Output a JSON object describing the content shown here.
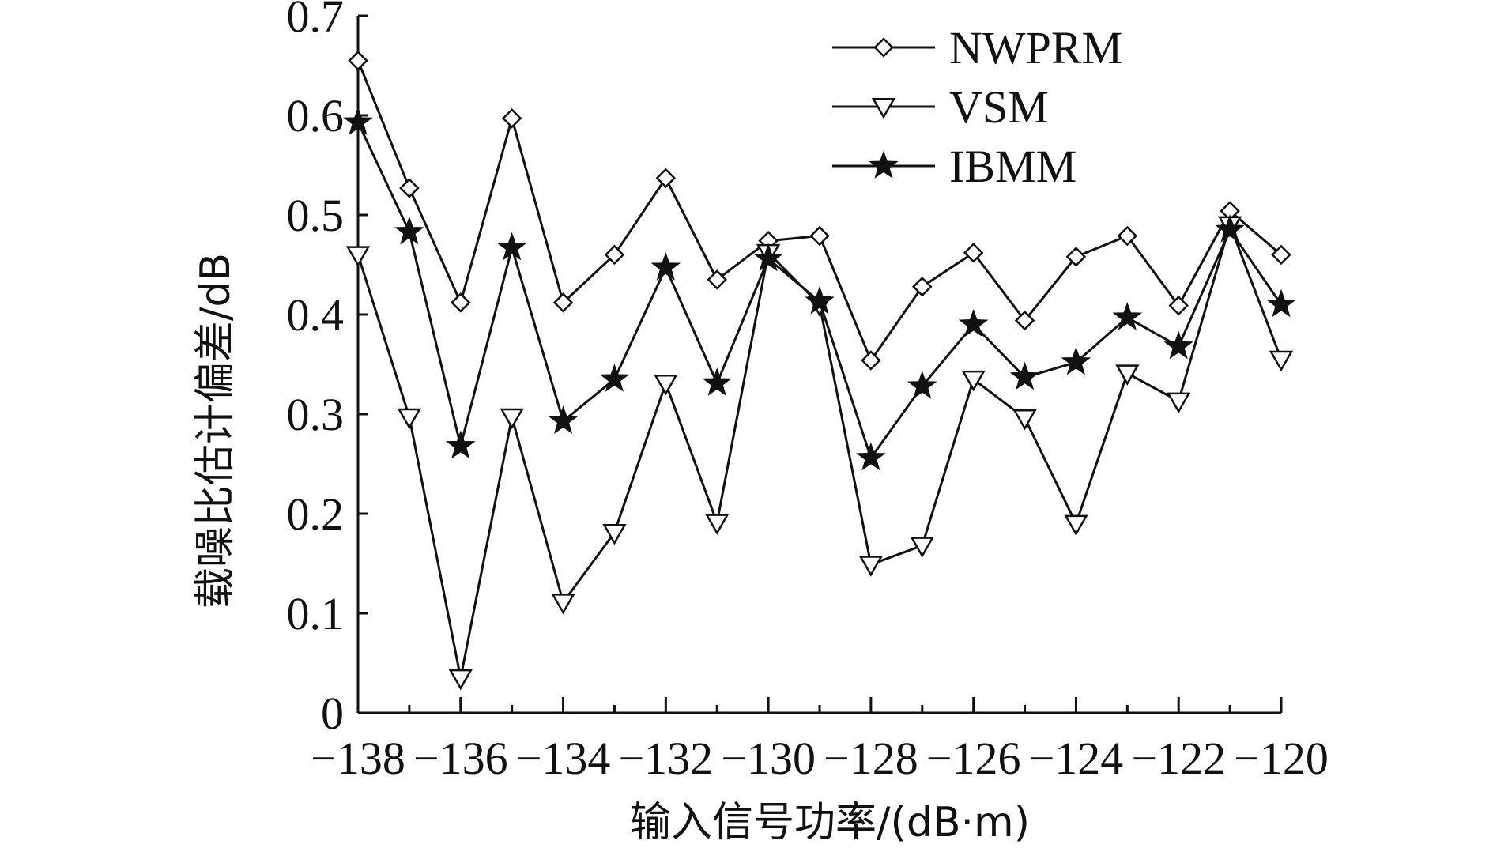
{
  "chart_data": {
    "type": "line",
    "title": "",
    "xlabel": "输入信号功率/(dB·m)",
    "ylabel": "载噪比估计偏差/dB",
    "xlim": [
      -138,
      -120
    ],
    "ylim": [
      0,
      0.7
    ],
    "x_ticks": [
      -138,
      -136,
      -134,
      -132,
      -130,
      -128,
      -126,
      -124,
      -122,
      -120
    ],
    "x_tick_labels": [
      "−138",
      "−136",
      "−134",
      "−132",
      "−130",
      "−128",
      "−126",
      "−124",
      "−122",
      "−120"
    ],
    "y_ticks": [
      0,
      0.1,
      0.2,
      0.3,
      0.4,
      0.5,
      0.6,
      0.7
    ],
    "y_tick_labels": [
      "0",
      "0.1",
      "0.2",
      "0.3",
      "0.4",
      "0.5",
      "0.6",
      "0.7"
    ],
    "grid": false,
    "legend_position": "top-right",
    "x": [
      -138,
      -137,
      -136,
      -135,
      -134,
      -133,
      -132,
      -131,
      -130,
      -129,
      -128,
      -127,
      -126,
      -125,
      -124,
      -123,
      -122,
      -121,
      -120
    ],
    "series": [
      {
        "name": "NWPRM",
        "marker": "diamond",
        "values": [
          0.655,
          0.527,
          0.412,
          0.597,
          0.412,
          0.46,
          0.537,
          0.435,
          0.474,
          0.479,
          0.354,
          0.428,
          0.462,
          0.394,
          0.458,
          0.479,
          0.409,
          0.504,
          0.46
        ]
      },
      {
        "name": "VSM",
        "marker": "triangle-down",
        "values": [
          0.46,
          0.297,
          0.035,
          0.297,
          0.111,
          0.181,
          0.331,
          0.191,
          0.462,
          0.41,
          0.149,
          0.168,
          0.335,
          0.296,
          0.19,
          0.341,
          0.313,
          0.49,
          0.355
        ]
      },
      {
        "name": "IBMM",
        "marker": "star",
        "values": [
          0.593,
          0.483,
          0.268,
          0.467,
          0.293,
          0.335,
          0.447,
          0.331,
          0.456,
          0.413,
          0.256,
          0.328,
          0.39,
          0.337,
          0.352,
          0.397,
          0.368,
          0.485,
          0.41
        ]
      }
    ]
  }
}
